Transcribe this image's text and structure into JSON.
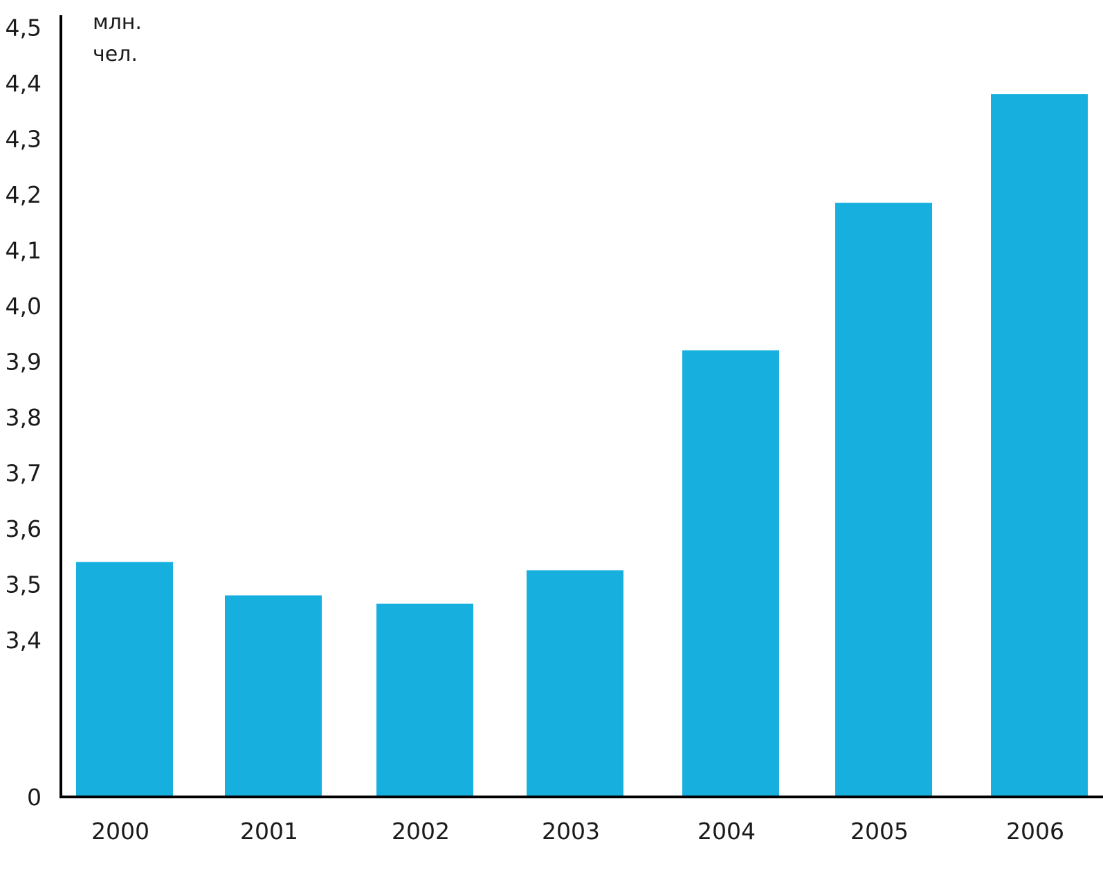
{
  "chart_data": {
    "type": "bar",
    "title": "",
    "xlabel": "",
    "ylabel": "",
    "unit_label_lines": [
      "млн.",
      "чел."
    ],
    "categories": [
      "2000",
      "2001",
      "2002",
      "2003",
      "2004",
      "2005",
      "2006"
    ],
    "values": [
      3.54,
      3.48,
      3.465,
      3.525,
      3.92,
      4.185,
      4.38
    ],
    "y_ticks": [
      {
        "value": 0,
        "label": "0"
      },
      {
        "value": 3.4,
        "label": "3,4"
      },
      {
        "value": 3.5,
        "label": "3,5"
      },
      {
        "value": 3.6,
        "label": "3,6"
      },
      {
        "value": 3.7,
        "label": "3,7"
      },
      {
        "value": 3.8,
        "label": "3,8"
      },
      {
        "value": 3.9,
        "label": "3,9"
      },
      {
        "value": 4.0,
        "label": "4,0"
      },
      {
        "value": 4.1,
        "label": "4,1"
      },
      {
        "value": 4.2,
        "label": "4,2"
      },
      {
        "value": 4.3,
        "label": "4,3"
      },
      {
        "value": 4.4,
        "label": "4,4"
      },
      {
        "value": 4.5,
        "label": "4,5"
      }
    ],
    "axis_break": {
      "from": 0,
      "to": 3.4
    },
    "ylim": [
      0,
      4.5
    ],
    "grid": false,
    "legend": "none",
    "colors": {
      "bar": "#17b0de",
      "axis": "#000000"
    }
  }
}
